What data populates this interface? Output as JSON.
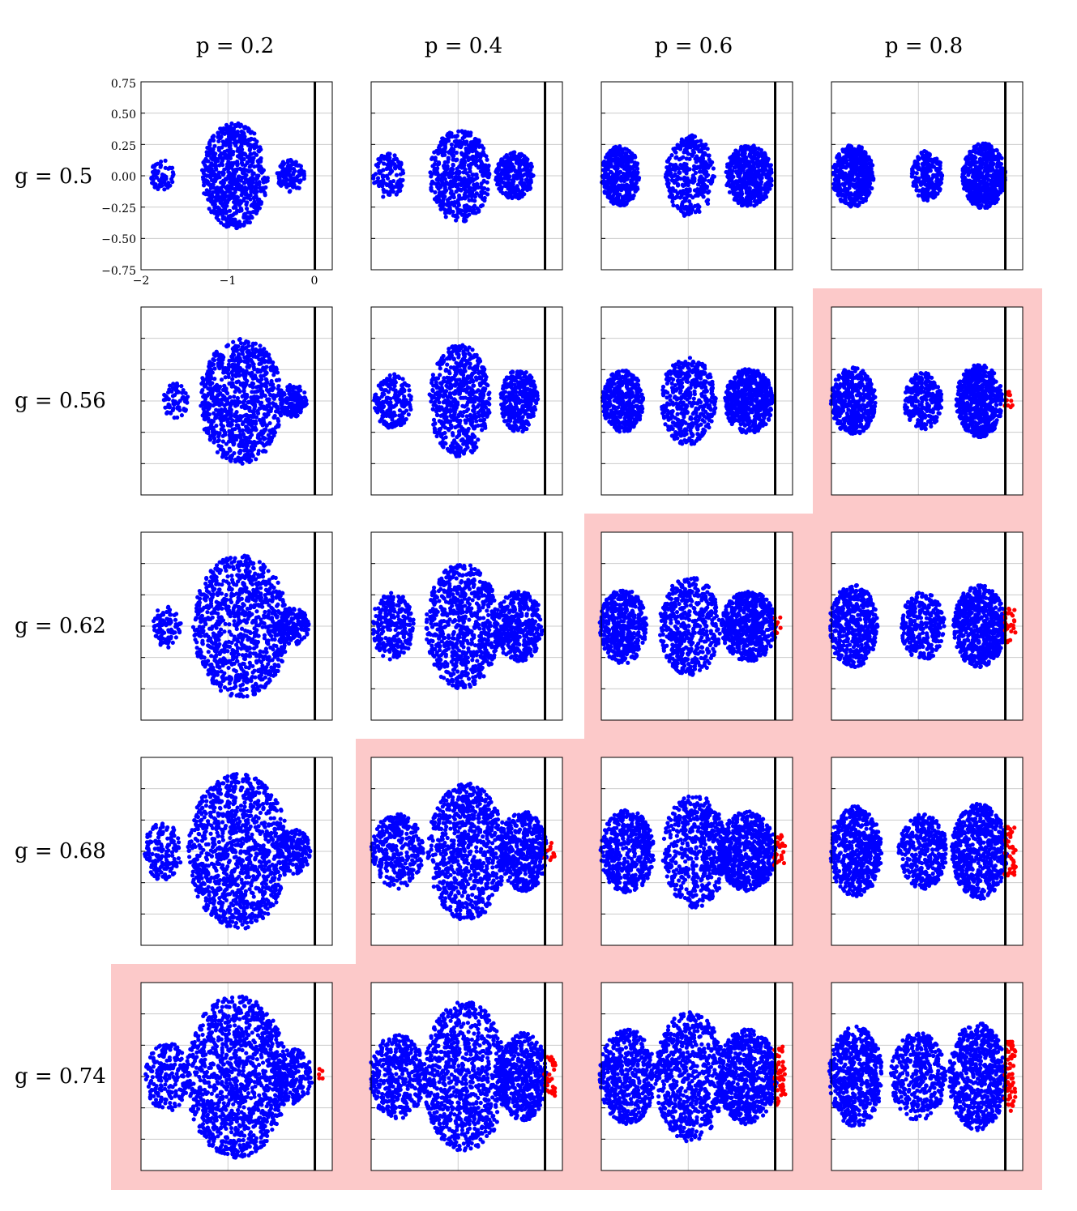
{
  "columns": [
    "p = 0.2",
    "p = 0.4",
    "p = 0.6",
    "p = 0.8"
  ],
  "rows": [
    "g = 0.5",
    "g = 0.56",
    "g = 0.62",
    "g = 0.68",
    "g = 0.74"
  ],
  "colors": {
    "stable_points": "#0000ff",
    "unstable_points": "#ff0000",
    "highlight_background": "#fcc9c9",
    "boundary_line": "#000000",
    "grid": "#cccccc"
  },
  "chart_data": {
    "type": "scatter",
    "layout": "grid of 5 rows x 4 columns of small scatter panels",
    "x_ticks": [
      "−2",
      "−1",
      "0"
    ],
    "y_ticks": [
      "0.75",
      "0.50",
      "0.25",
      "0.00",
      "−0.25",
      "−0.50",
      "−0.75"
    ],
    "xlim": [
      -2,
      0.2
    ],
    "ylim": [
      -0.75,
      0.75
    ],
    "grid": true,
    "boundary_x": 0,
    "highlighted_panels": [
      [
        1,
        3
      ],
      [
        2,
        2
      ],
      [
        2,
        3
      ],
      [
        3,
        1
      ],
      [
        3,
        2
      ],
      [
        3,
        3
      ],
      [
        4,
        0
      ],
      [
        4,
        1
      ],
      [
        4,
        2
      ],
      [
        4,
        3
      ]
    ],
    "panels": [
      [
        {
          "clusters": [
            {
              "cx": -1.75,
              "rx": 0.14,
              "ry": 0.13,
              "n": 60
            },
            {
              "cx": -0.92,
              "rx": 0.38,
              "ry": 0.42,
              "n": 700
            },
            {
              "cx": -0.28,
              "rx": 0.16,
              "ry": 0.13,
              "n": 120
            }
          ],
          "red": 0
        },
        {
          "clusters": [
            {
              "cx": -1.8,
              "rx": 0.18,
              "ry": 0.18,
              "n": 120
            },
            {
              "cx": -0.98,
              "rx": 0.35,
              "ry": 0.37,
              "n": 550
            },
            {
              "cx": -0.35,
              "rx": 0.22,
              "ry": 0.19,
              "n": 300
            }
          ],
          "red": 0
        },
        {
          "clusters": [
            {
              "cx": -1.78,
              "rx": 0.22,
              "ry": 0.24,
              "n": 400
            },
            {
              "cx": -0.98,
              "rx": 0.28,
              "ry": 0.33,
              "n": 350
            },
            {
              "cx": -0.3,
              "rx": 0.27,
              "ry": 0.25,
              "n": 500
            }
          ],
          "red": 0
        },
        {
          "clusters": [
            {
              "cx": -1.75,
              "rx": 0.24,
              "ry": 0.25,
              "n": 450
            },
            {
              "cx": -0.9,
              "rx": 0.18,
              "ry": 0.2,
              "n": 220
            },
            {
              "cx": -0.25,
              "rx": 0.25,
              "ry": 0.26,
              "n": 550
            }
          ],
          "red": 0
        }
      ],
      [
        {
          "clusters": [
            {
              "cx": -1.6,
              "rx": 0.15,
              "ry": 0.14,
              "n": 70
            },
            {
              "cx": -0.85,
              "rx": 0.48,
              "ry": 0.5,
              "n": 900
            },
            {
              "cx": -0.25,
              "rx": 0.16,
              "ry": 0.13,
              "n": 150
            }
          ],
          "red": 0
        },
        {
          "clusters": [
            {
              "cx": -1.75,
              "rx": 0.22,
              "ry": 0.22,
              "n": 200
            },
            {
              "cx": -0.98,
              "rx": 0.35,
              "ry": 0.45,
              "n": 600
            },
            {
              "cx": -0.3,
              "rx": 0.22,
              "ry": 0.25,
              "n": 350
            }
          ],
          "red": 0
        },
        {
          "clusters": [
            {
              "cx": -1.75,
              "rx": 0.24,
              "ry": 0.25,
              "n": 420
            },
            {
              "cx": -1.0,
              "rx": 0.32,
              "ry": 0.35,
              "n": 420
            },
            {
              "cx": -0.3,
              "rx": 0.28,
              "ry": 0.26,
              "n": 550
            }
          ],
          "red": 0
        },
        {
          "clusters": [
            {
              "cx": -1.75,
              "rx": 0.26,
              "ry": 0.27,
              "n": 480
            },
            {
              "cx": -0.95,
              "rx": 0.22,
              "ry": 0.23,
              "n": 260
            },
            {
              "cx": -0.3,
              "rx": 0.27,
              "ry": 0.29,
              "n": 580
            }
          ],
          "red": 10
        }
      ],
      [
        {
          "clusters": [
            {
              "cx": -1.7,
              "rx": 0.16,
              "ry": 0.17,
              "n": 90
            },
            {
              "cx": -0.85,
              "rx": 0.55,
              "ry": 0.57,
              "n": 1000
            },
            {
              "cx": -0.25,
              "rx": 0.18,
              "ry": 0.15,
              "n": 180
            }
          ],
          "red": 0
        },
        {
          "clusters": [
            {
              "cx": -1.75,
              "rx": 0.24,
              "ry": 0.27,
              "n": 260
            },
            {
              "cx": -0.95,
              "rx": 0.42,
              "ry": 0.5,
              "n": 750
            },
            {
              "cx": -0.3,
              "rx": 0.28,
              "ry": 0.28,
              "n": 420
            }
          ],
          "red": 0
        },
        {
          "clusters": [
            {
              "cx": -1.75,
              "rx": 0.27,
              "ry": 0.3,
              "n": 480
            },
            {
              "cx": -0.98,
              "rx": 0.35,
              "ry": 0.4,
              "n": 520
            },
            {
              "cx": -0.3,
              "rx": 0.32,
              "ry": 0.28,
              "n": 600
            }
          ],
          "red": 8
        },
        {
          "clusters": [
            {
              "cx": -1.75,
              "rx": 0.28,
              "ry": 0.33,
              "n": 520
            },
            {
              "cx": -0.95,
              "rx": 0.25,
              "ry": 0.27,
              "n": 320
            },
            {
              "cx": -0.3,
              "rx": 0.3,
              "ry": 0.33,
              "n": 620
            }
          ],
          "red": 25
        }
      ],
      [
        {
          "clusters": [
            {
              "cx": -1.75,
              "rx": 0.22,
              "ry": 0.23,
              "n": 160
            },
            {
              "cx": -0.88,
              "rx": 0.58,
              "ry": 0.62,
              "n": 1150
            },
            {
              "cx": -0.25,
              "rx": 0.2,
              "ry": 0.18,
              "n": 200
            }
          ],
          "red": 0
        },
        {
          "clusters": [
            {
              "cx": -1.7,
              "rx": 0.3,
              "ry": 0.3,
              "n": 360
            },
            {
              "cx": -0.9,
              "rx": 0.45,
              "ry": 0.55,
              "n": 850
            },
            {
              "cx": -0.25,
              "rx": 0.28,
              "ry": 0.32,
              "n": 480
            }
          ],
          "red": 10
        },
        {
          "clusters": [
            {
              "cx": -1.7,
              "rx": 0.31,
              "ry": 0.33,
              "n": 520
            },
            {
              "cx": -0.92,
              "rx": 0.38,
              "ry": 0.45,
              "n": 600
            },
            {
              "cx": -0.32,
              "rx": 0.33,
              "ry": 0.32,
              "n": 650
            }
          ],
          "red": 25
        },
        {
          "clusters": [
            {
              "cx": -1.72,
              "rx": 0.3,
              "ry": 0.36,
              "n": 560
            },
            {
              "cx": -0.95,
              "rx": 0.28,
              "ry": 0.3,
              "n": 360
            },
            {
              "cx": -0.3,
              "rx": 0.32,
              "ry": 0.38,
              "n": 650
            }
          ],
          "red": 40
        }
      ],
      [
        {
          "clusters": [
            {
              "cx": -1.7,
              "rx": 0.25,
              "ry": 0.28,
              "n": 220
            },
            {
              "cx": -0.9,
              "rx": 0.58,
              "ry": 0.65,
              "n": 1250
            },
            {
              "cx": -0.25,
              "rx": 0.22,
              "ry": 0.22,
              "n": 230
            }
          ],
          "red": 5
        },
        {
          "clusters": [
            {
              "cx": -1.7,
              "rx": 0.32,
              "ry": 0.34,
              "n": 420
            },
            {
              "cx": -0.92,
              "rx": 0.48,
              "ry": 0.6,
              "n": 950
            },
            {
              "cx": -0.25,
              "rx": 0.28,
              "ry": 0.35,
              "n": 520
            }
          ],
          "red": 30
        },
        {
          "clusters": [
            {
              "cx": -1.7,
              "rx": 0.32,
              "ry": 0.38,
              "n": 560
            },
            {
              "cx": -0.98,
              "rx": 0.4,
              "ry": 0.52,
              "n": 700
            },
            {
              "cx": -0.32,
              "rx": 0.34,
              "ry": 0.38,
              "n": 700
            }
          ],
          "red": 50
        },
        {
          "clusters": [
            {
              "cx": -1.72,
              "rx": 0.31,
              "ry": 0.4,
              "n": 600
            },
            {
              "cx": -1.0,
              "rx": 0.32,
              "ry": 0.35,
              "n": 420
            },
            {
              "cx": -0.32,
              "rx": 0.33,
              "ry": 0.43,
              "n": 700
            }
          ],
          "red": 60
        }
      ]
    ]
  }
}
